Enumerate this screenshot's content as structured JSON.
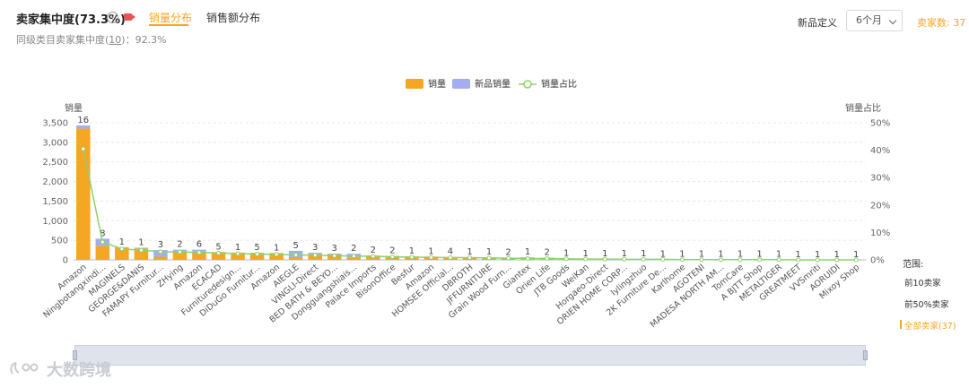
{
  "header": {
    "title": "卖家集中度(73.3%)",
    "help": "?",
    "tabs": [
      {
        "label": "销量分布",
        "active": true
      },
      {
        "label": "销售额分布",
        "active": false
      }
    ],
    "subline_prefix": "同级类目卖家集中度(",
    "subline_link": "10",
    "subline_suffix": ")：92.3%",
    "new_product_label": "新品定义",
    "period_select": "6个月",
    "seller_count": "卖家数: 37"
  },
  "range": {
    "title": "范围:",
    "options": [
      "前10卖家",
      "前50%卖家",
      "全部卖家(37)"
    ],
    "selected": "全部卖家(37)"
  },
  "watermark": "大数跨境",
  "colors": {
    "sales": "#f5a623",
    "new_sales": "#a3aef0",
    "share": "#8bd36b",
    "accent": "#f5a623"
  },
  "chart_data": {
    "type": "bar",
    "legend": [
      "销量",
      "新品销量",
      "销量占比"
    ],
    "legend_placement": "top-center",
    "ylabel": "销量",
    "y2label": "销量占比",
    "ylim": [
      0,
      3500
    ],
    "yticks": [
      "0",
      "500",
      "1,000",
      "1,500",
      "2,000",
      "2,500",
      "3,000",
      "3,500"
    ],
    "y2lim": [
      0,
      50
    ],
    "y2ticks": [
      "0%",
      "10%",
      "20%",
      "30%",
      "40%",
      "50%"
    ],
    "grid": true,
    "categories": [
      "Amazon",
      "Ningbotangxindi...",
      "MAGINELS",
      "GEORGE&DANIS",
      "FAMAPY Furnitur...",
      "ZHying",
      "Amazon",
      "ECACAD",
      "Furnituredesign...",
      "DiDuGo Furnitur...",
      "Amazon",
      "AIEGLE",
      "VINGLI-Direct",
      "BED BATH & BEYO...",
      "Dongguangshiais...",
      "Palace Imports",
      "BisonOffice",
      "Besfur",
      "Amazon",
      "HOMSEE Official...",
      "DBROTH",
      "JFFURNITURE",
      "Grain Wood Furn...",
      "Giantex",
      "Orien Life",
      "JTB Goods",
      "WeiKan",
      "Horgaeo-Direct",
      "ORIEN HOME CORP...",
      "Iylingzhuo",
      "2K Furniture De...",
      "Karlhome",
      "AGOTENI",
      "MADESA NORTH AM...",
      "TomCare",
      "A BJTT Shop",
      "METALTIGER",
      "GREATMEET",
      "VVSmriti",
      "AORUIDI",
      "Mixoy Shop"
    ],
    "series": [
      {
        "name": "销量",
        "values": [
          3350,
          360,
          320,
          290,
          80,
          230,
          220,
          200,
          185,
          180,
          175,
          70,
          150,
          140,
          65,
          110,
          100,
          90,
          85,
          75,
          70,
          65,
          55,
          45,
          35,
          30,
          25,
          22,
          20,
          18,
          15,
          12,
          10,
          9,
          8,
          7,
          6,
          5,
          4,
          3,
          2
        ]
      },
      {
        "name": "新品销量",
        "values": [
          80,
          180,
          0,
          20,
          170,
          30,
          40,
          0,
          0,
          0,
          0,
          160,
          30,
          20,
          90,
          0,
          0,
          0,
          0,
          0,
          0,
          0,
          0,
          20,
          20,
          0,
          0,
          0,
          0,
          0,
          0,
          0,
          0,
          0,
          0,
          0,
          0,
          0,
          0,
          0,
          0
        ]
      },
      {
        "name": "销量占比",
        "values": [
          40.5,
          6.5,
          4.0,
          3.5,
          3.0,
          2.9,
          2.7,
          2.5,
          2.3,
          2.1,
          2.0,
          1.8,
          1.7,
          1.5,
          1.4,
          1.3,
          1.1,
          1.0,
          0.9,
          0.8,
          0.8,
          0.7,
          0.6,
          0.5,
          0.5,
          0.4,
          0.3,
          0.3,
          0.2,
          0.2,
          0.2,
          0.1,
          0.1,
          0.1,
          0.1,
          0.1,
          0.1,
          0.0,
          0.0,
          0.0,
          0.0
        ]
      }
    ],
    "data_labels": [
      "16",
      "8",
      "1",
      "1",
      "3",
      "2",
      "6",
      "5",
      "1",
      "5",
      "1",
      "5",
      "3",
      "3",
      "2",
      "2",
      "2",
      "1",
      "1",
      "4",
      "1",
      "1",
      "2",
      "1",
      "2",
      "1",
      "1",
      "1",
      "1",
      "1",
      "1",
      "1",
      "1",
      "1",
      "1",
      "1",
      "1",
      "1",
      "1",
      "1",
      "1"
    ]
  }
}
